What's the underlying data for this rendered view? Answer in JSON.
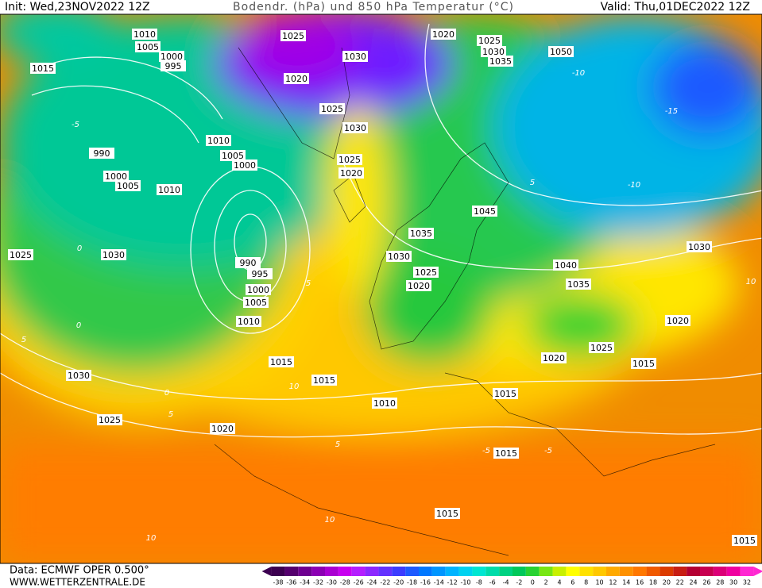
{
  "header": {
    "init": "Init: Wed,23NOV2022 12Z",
    "title": "Bodendr. (hPa) und 850 hPa Temperatur (°C)",
    "valid": "Valid: Thu,01DEC2022 12Z"
  },
  "footer": {
    "source": "Data: ECMWF OPER 0.500°",
    "website": "WWW.WETTERZENTRALE.DE"
  },
  "legend": {
    "ticks": [
      -38,
      -36,
      -34,
      -32,
      -30,
      -28,
      -26,
      -24,
      -22,
      -20,
      -18,
      -16,
      -14,
      -12,
      -10,
      -8,
      -6,
      -4,
      -2,
      0,
      2,
      4,
      6,
      8,
      10,
      12,
      14,
      16,
      18,
      20,
      22,
      24,
      26,
      28,
      30,
      32
    ],
    "colors": [
      "#3c0050",
      "#55006e",
      "#6e0090",
      "#8c00b4",
      "#aa00d2",
      "#c800f0",
      "#b41eff",
      "#8c28ff",
      "#6432ff",
      "#3c3cff",
      "#1e5aff",
      "#0078ff",
      "#0096ff",
      "#00b4ff",
      "#00d2f0",
      "#00e6d2",
      "#00dcaa",
      "#00d282",
      "#00c85a",
      "#28d232",
      "#78e614",
      "#c8f000",
      "#ffff00",
      "#ffe100",
      "#ffc800",
      "#ffaa00",
      "#ff9100",
      "#ff7800",
      "#f05a00",
      "#dc3c00",
      "#c81e14",
      "#b40032",
      "#c80050",
      "#dc0078",
      "#f000a0",
      "#ff28d2"
    ]
  },
  "isobar_labels": [
    "1010",
    "1005",
    "1000",
    "995",
    "1015",
    "1025",
    "1030",
    "1020",
    "1025",
    "1030",
    "1035",
    "1050",
    "1020",
    "1025",
    "1030",
    "1010",
    "1005",
    "1000",
    "990",
    "1000",
    "1005",
    "1010",
    "1025",
    "1020",
    "1045",
    "1035",
    "1030",
    "1025",
    "1020",
    "1040",
    "1035",
    "1030",
    "1025",
    "1030",
    "990",
    "995",
    "1000",
    "1005",
    "1010",
    "1020",
    "1025",
    "1020",
    "1015",
    "1015",
    "1015",
    "1010",
    "1015",
    "1030",
    "1025",
    "1020",
    "1015",
    "1015",
    "1015"
  ],
  "temperature_labels": [
    "-10",
    "-15",
    "-10",
    "-5",
    "0",
    "5",
    "5",
    "0",
    "-5",
    "5",
    "0",
    "5",
    "10",
    "10",
    "10",
    "5",
    "-5",
    "10"
  ]
}
